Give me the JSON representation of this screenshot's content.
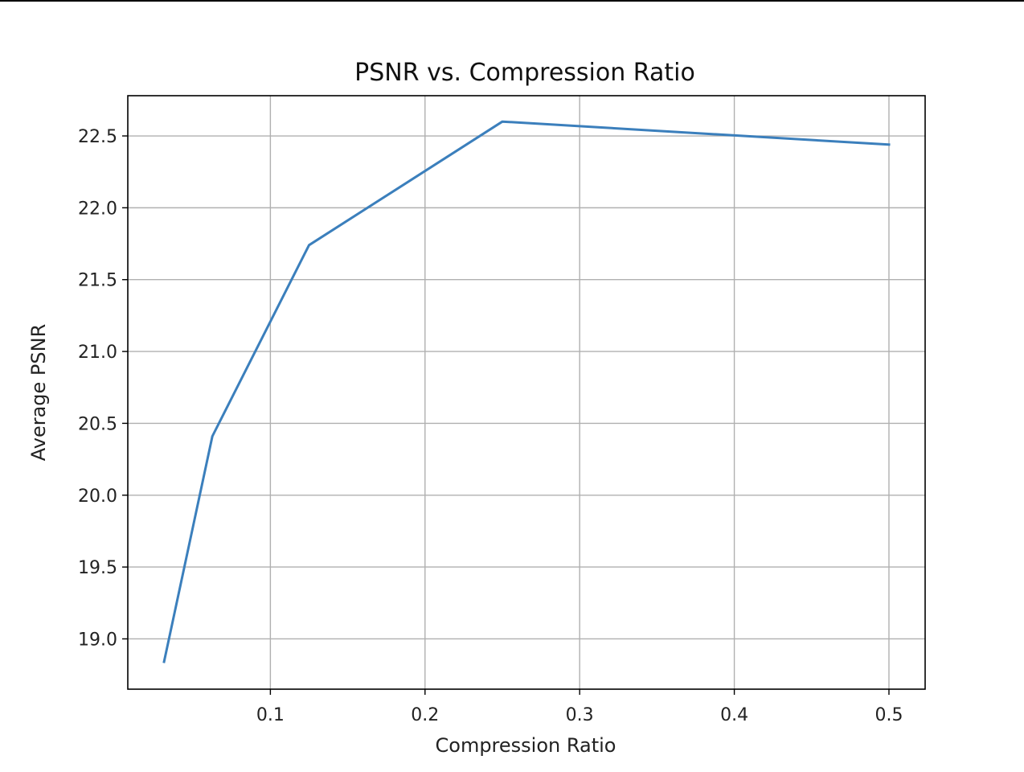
{
  "chart_data": {
    "type": "line",
    "title": "PSNR vs. Compression Ratio",
    "xlabel": "Compression Ratio",
    "ylabel": "Average PSNR",
    "xlim": [
      0.0078,
      0.5234
    ],
    "ylim": [
      18.65,
      22.78
    ],
    "x_ticks": [
      0.1,
      0.2,
      0.3,
      0.4,
      0.5
    ],
    "x_tick_labels": [
      "0.1",
      "0.2",
      "0.3",
      "0.4",
      "0.5"
    ],
    "y_ticks": [
      19.0,
      19.5,
      20.0,
      20.5,
      21.0,
      21.5,
      22.0,
      22.5
    ],
    "y_tick_labels": [
      "19.0",
      "19.5",
      "20.0",
      "20.5",
      "21.0",
      "21.5",
      "22.0",
      "22.5"
    ],
    "grid": true,
    "series": [
      {
        "x": [
          0.03125,
          0.0625,
          0.125,
          0.25,
          0.5
        ],
        "y": [
          18.84,
          20.41,
          21.74,
          22.6,
          22.44
        ],
        "color": "#3b7fbc"
      }
    ]
  }
}
